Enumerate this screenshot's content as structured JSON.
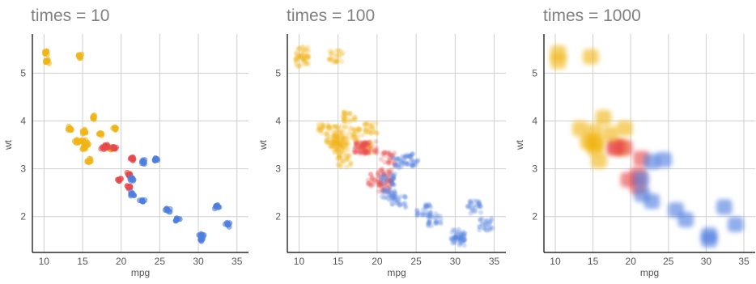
{
  "colors": {
    "red": "#e8484b",
    "orange": "#f0b418",
    "blue": "#4f7de0"
  },
  "chart_data": [
    {
      "type": "scatter",
      "title": "times = 10",
      "xlabel": "mpg",
      "ylabel": "wt",
      "xlim": [
        8.5,
        36.5
      ],
      "ylim": [
        1.25,
        5.82
      ],
      "xticks": [
        10,
        15,
        20,
        25,
        30,
        35
      ],
      "yticks": [
        2,
        3,
        4,
        5
      ],
      "grid": true,
      "jitter_repeats": 10,
      "rendering": "semi-transparent points"
    },
    {
      "type": "scatter",
      "title": "times = 100",
      "xlabel": "mpg",
      "ylabel": "wt",
      "xlim": [
        8.5,
        36.5
      ],
      "ylim": [
        1.25,
        5.82
      ],
      "xticks": [
        10,
        15,
        20,
        25,
        30,
        35
      ],
      "yticks": [
        2,
        3,
        4,
        5
      ],
      "grid": true,
      "jitter_repeats": 100,
      "rendering": "dense jittered clouds"
    },
    {
      "type": "scatter",
      "title": "times = 1000",
      "xlabel": "mpg",
      "ylabel": "wt",
      "xlim": [
        8.5,
        36.5
      ],
      "ylim": [
        1.25,
        5.82
      ],
      "xticks": [
        10,
        15,
        20,
        25,
        30,
        35
      ],
      "yticks": [
        2,
        3,
        4,
        5
      ],
      "grid": true,
      "jitter_repeats": 1000,
      "rendering": "blurred rounded squares"
    }
  ],
  "points": [
    {
      "mpg": 21.0,
      "wt": 2.62,
      "group": "red"
    },
    {
      "mpg": 21.0,
      "wt": 2.875,
      "group": "red"
    },
    {
      "mpg": 22.8,
      "wt": 2.32,
      "group": "blue"
    },
    {
      "mpg": 21.4,
      "wt": 3.215,
      "group": "red"
    },
    {
      "mpg": 18.7,
      "wt": 3.44,
      "group": "orange"
    },
    {
      "mpg": 18.1,
      "wt": 3.46,
      "group": "red"
    },
    {
      "mpg": 14.3,
      "wt": 3.57,
      "group": "orange"
    },
    {
      "mpg": 24.4,
      "wt": 3.19,
      "group": "blue"
    },
    {
      "mpg": 22.8,
      "wt": 3.15,
      "group": "blue"
    },
    {
      "mpg": 19.2,
      "wt": 3.44,
      "group": "red"
    },
    {
      "mpg": 17.8,
      "wt": 3.44,
      "group": "red"
    },
    {
      "mpg": 16.4,
      "wt": 4.07,
      "group": "orange"
    },
    {
      "mpg": 17.3,
      "wt": 3.73,
      "group": "orange"
    },
    {
      "mpg": 15.2,
      "wt": 3.78,
      "group": "orange"
    },
    {
      "mpg": 10.4,
      "wt": 5.25,
      "group": "orange"
    },
    {
      "mpg": 10.4,
      "wt": 5.424,
      "group": "orange"
    },
    {
      "mpg": 14.7,
      "wt": 5.345,
      "group": "orange"
    },
    {
      "mpg": 32.4,
      "wt": 2.2,
      "group": "blue"
    },
    {
      "mpg": 30.4,
      "wt": 1.615,
      "group": "blue"
    },
    {
      "mpg": 33.9,
      "wt": 1.835,
      "group": "blue"
    },
    {
      "mpg": 21.5,
      "wt": 2.465,
      "group": "blue"
    },
    {
      "mpg": 15.5,
      "wt": 3.52,
      "group": "orange"
    },
    {
      "mpg": 15.2,
      "wt": 3.435,
      "group": "orange"
    },
    {
      "mpg": 13.3,
      "wt": 3.84,
      "group": "orange"
    },
    {
      "mpg": 19.2,
      "wt": 3.845,
      "group": "orange"
    },
    {
      "mpg": 27.3,
      "wt": 1.935,
      "group": "blue"
    },
    {
      "mpg": 26.0,
      "wt": 2.14,
      "group": "blue"
    },
    {
      "mpg": 30.4,
      "wt": 1.513,
      "group": "blue"
    },
    {
      "mpg": 15.8,
      "wt": 3.17,
      "group": "orange"
    },
    {
      "mpg": 19.7,
      "wt": 2.77,
      "group": "red"
    },
    {
      "mpg": 15.0,
      "wt": 3.57,
      "group": "orange"
    },
    {
      "mpg": 21.4,
      "wt": 2.78,
      "group": "blue"
    }
  ]
}
